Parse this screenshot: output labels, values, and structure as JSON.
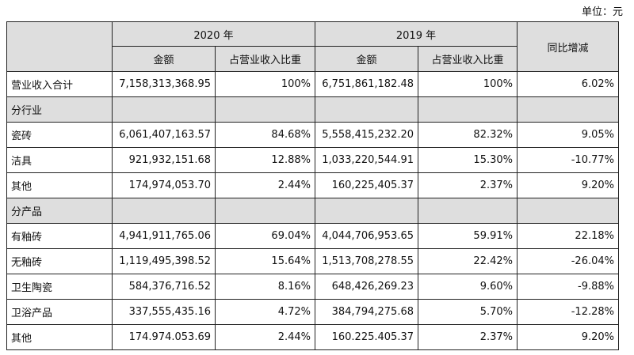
{
  "unit_label": "单位：元",
  "header": {
    "year_2020": "2020 年",
    "year_2019": "2019 年",
    "yoy": "同比增减",
    "amount": "金额",
    "ratio": "占营业收入比重"
  },
  "total": {
    "label": "营业收入合计",
    "amount_2020": "7,158,313,368.95",
    "ratio_2020": "100%",
    "amount_2019": "6,751,861,182.48",
    "ratio_2019": "100%",
    "yoy": "6.02%"
  },
  "section_industry": "分行业",
  "industry_rows": [
    {
      "label": "瓷砖",
      "amount_2020": "6,061,407,163.57",
      "ratio_2020": "84.68%",
      "amount_2019": "5,558,415,232.20",
      "ratio_2019": "82.32%",
      "yoy": "9.05%"
    },
    {
      "label": "洁具",
      "amount_2020": "921,932,151.68",
      "ratio_2020": "12.88%",
      "amount_2019": "1,033,220,544.91",
      "ratio_2019": "15.30%",
      "yoy": "-10.77%"
    },
    {
      "label": "其他",
      "amount_2020": "174,974,053.70",
      "ratio_2020": "2.44%",
      "amount_2019": "160,225,405.37",
      "ratio_2019": "2.37%",
      "yoy": "9.20%"
    }
  ],
  "section_product": "分产品",
  "product_rows": [
    {
      "label": "有釉砖",
      "amount_2020": "4,941,911,765.06",
      "ratio_2020": "69.04%",
      "amount_2019": "4,044,706,953.65",
      "ratio_2019": "59.91%",
      "yoy": "22.18%"
    },
    {
      "label": "无釉砖",
      "amount_2020": "1,119,495,398.52",
      "ratio_2020": "15.64%",
      "amount_2019": "1,513,708,278.55",
      "ratio_2019": "22.42%",
      "yoy": "-26.04%"
    },
    {
      "label": "卫生陶瓷",
      "amount_2020": "584,376,716.52",
      "ratio_2020": "8.16%",
      "amount_2019": "648,426,269.23",
      "ratio_2019": "9.60%",
      "yoy": "-9.88%"
    },
    {
      "label": "卫浴产品",
      "amount_2020": "337,555,435.16",
      "ratio_2020": "4.72%",
      "amount_2019": "384,794,275.68",
      "ratio_2019": "5.70%",
      "yoy": "-12.28%"
    },
    {
      "label": "其他",
      "amount_2020": "174.974.053.69",
      "ratio_2020": "2.44%",
      "amount_2019": "160.225.405.37",
      "ratio_2019": "2.37%",
      "yoy": "9.20%"
    }
  ]
}
